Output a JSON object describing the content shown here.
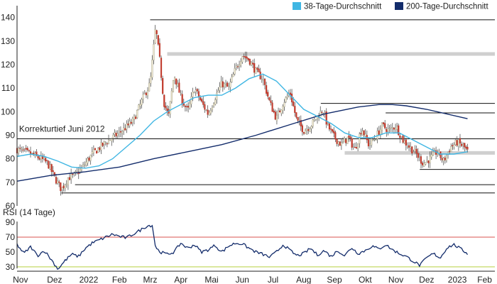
{
  "chart_data": [
    {
      "type": "candlestick",
      "legend": {
        "position": "top-right",
        "entries": [
          {
            "name": "38-Tage-Durchschnitt",
            "color": "#3fb6e3"
          },
          {
            "name": "200-Tage-Durchschnitt",
            "color": "#132c6b"
          }
        ]
      },
      "colors": {
        "up": "#f2ead2",
        "down": "#c0392b",
        "wick": "#555555",
        "ma38": "#3fb6e3",
        "ma200": "#132c6b",
        "support_line": "#111111",
        "support_zone": "#cfcfcf"
      },
      "ylim": [
        60,
        145
      ],
      "yticks": [
        60,
        70,
        80,
        90,
        100,
        110,
        120,
        130,
        140
      ],
      "xlim": [
        0,
        66
      ],
      "months": [
        {
          "label": "Nov",
          "x": 0.5
        },
        {
          "label": "Dez",
          "x": 5.5
        },
        {
          "label": "2022",
          "x": 10.5
        },
        {
          "label": "Feb",
          "x": 15
        },
        {
          "label": "Mrz",
          "x": 19.5
        },
        {
          "label": "Apr",
          "x": 24
        },
        {
          "label": "Mai",
          "x": 28.5
        },
        {
          "label": "Jun",
          "x": 33
        },
        {
          "label": "Jul",
          "x": 37.5
        },
        {
          "label": "Aug",
          "x": 42
        },
        {
          "label": "Sep",
          "x": 46.5
        },
        {
          "label": "Okt",
          "x": 51
        },
        {
          "label": "Nov",
          "x": 55.5
        },
        {
          "label": "Dez",
          "x": 60
        },
        {
          "label": "2023",
          "x": 64.5
        },
        {
          "label": "Feb",
          "x": 68.5
        }
      ],
      "annotation": {
        "text": "Korrekturtief Juni 2012",
        "x": 0.3,
        "y": 91.5
      },
      "levels": [
        {
          "y": 139,
          "x0": 19.5,
          "x1": 70
        },
        {
          "y": 103.5,
          "x0": 44.5,
          "x1": 70
        },
        {
          "y": 99.5,
          "x0": 54,
          "x1": 70
        },
        {
          "y": 88.5,
          "x0": 0,
          "x1": 70
        },
        {
          "y": 75.5,
          "x0": 59,
          "x1": 70
        },
        {
          "y": 69,
          "x0": 8.5,
          "x1": 70
        },
        {
          "y": 65.5,
          "x0": 6.5,
          "x1": 70
        }
      ],
      "zones": [
        {
          "y": 124.5,
          "x0": 22,
          "x1": 70
        },
        {
          "y": 82.5,
          "x0": 48,
          "x1": 70
        }
      ],
      "price_path": [
        [
          0,
          84
        ],
        [
          2,
          82
        ],
        [
          3.5,
          80
        ],
        [
          4.5,
          78
        ],
        [
          5.5,
          72
        ],
        [
          6.5,
          67
        ],
        [
          7.5,
          72
        ],
        [
          8.5,
          73
        ],
        [
          9.5,
          76
        ],
        [
          11,
          82
        ],
        [
          13,
          87
        ],
        [
          15,
          91
        ],
        [
          17,
          96
        ],
        [
          18.5,
          106
        ],
        [
          19.5,
          112
        ],
        [
          20.3,
          136
        ],
        [
          20.9,
          122
        ],
        [
          21.5,
          104
        ],
        [
          22.2,
          98
        ],
        [
          23,
          116
        ],
        [
          24,
          106
        ],
        [
          25,
          100
        ],
        [
          26,
          110
        ],
        [
          27,
          104
        ],
        [
          28,
          99
        ],
        [
          29,
          106
        ],
        [
          30,
          112
        ],
        [
          31,
          110
        ],
        [
          32,
          118
        ],
        [
          33,
          124
        ],
        [
          34,
          122
        ],
        [
          35,
          117
        ],
        [
          36,
          114
        ],
        [
          37,
          104
        ],
        [
          38,
          97
        ],
        [
          39,
          104
        ],
        [
          40,
          108
        ],
        [
          41,
          96
        ],
        [
          42,
          92
        ],
        [
          43,
          94
        ],
        [
          44,
          98
        ],
        [
          44.8,
          101
        ],
        [
          45.5,
          94
        ],
        [
          46.5,
          89
        ],
        [
          47.5,
          86
        ],
        [
          48.5,
          89
        ],
        [
          49.5,
          84
        ],
        [
          50.5,
          93
        ],
        [
          51.5,
          86
        ],
        [
          52.5,
          89
        ],
        [
          53.5,
          94
        ],
        [
          54.5,
          92
        ],
        [
          55.5,
          94
        ],
        [
          56.5,
          88
        ],
        [
          57.5,
          85
        ],
        [
          58.5,
          82
        ],
        [
          59.5,
          78
        ],
        [
          60.5,
          80
        ],
        [
          61.5,
          83
        ],
        [
          62.5,
          79
        ],
        [
          63.5,
          85
        ],
        [
          64.5,
          87
        ],
        [
          65.5,
          85
        ],
        [
          66,
          83
        ]
      ],
      "ma38_path": [
        [
          0,
          81
        ],
        [
          2,
          82
        ],
        [
          4,
          81
        ],
        [
          6,
          79
        ],
        [
          8,
          76.5
        ],
        [
          10,
          76
        ],
        [
          12,
          77
        ],
        [
          14,
          80
        ],
        [
          16,
          85
        ],
        [
          18,
          90
        ],
        [
          20,
          96
        ],
        [
          22,
          100
        ],
        [
          24,
          103
        ],
        [
          26,
          106
        ],
        [
          28,
          107
        ],
        [
          30,
          107
        ],
        [
          32,
          110
        ],
        [
          34,
          114
        ],
        [
          36,
          116
        ],
        [
          38,
          113
        ],
        [
          40,
          107
        ],
        [
          42,
          101
        ],
        [
          44,
          98
        ],
        [
          46,
          95
        ],
        [
          48,
          91
        ],
        [
          50,
          89
        ],
        [
          52,
          89
        ],
        [
          54,
          91
        ],
        [
          56,
          91
        ],
        [
          58,
          88
        ],
        [
          60,
          85
        ],
        [
          62,
          82
        ],
        [
          64,
          82
        ],
        [
          66,
          83
        ]
      ],
      "ma200_path": [
        [
          0,
          70.5
        ],
        [
          5,
          73
        ],
        [
          10,
          74.5
        ],
        [
          15,
          76.5
        ],
        [
          20,
          80
        ],
        [
          25,
          83
        ],
        [
          30,
          86
        ],
        [
          35,
          90
        ],
        [
          40,
          94.5
        ],
        [
          45,
          99
        ],
        [
          50,
          102
        ],
        [
          53,
          103
        ],
        [
          55,
          103
        ],
        [
          57,
          102.5
        ],
        [
          60,
          101
        ],
        [
          63,
          99
        ],
        [
          66,
          97
        ]
      ]
    },
    {
      "type": "line",
      "title": "RSI (14 Tage)",
      "ylim": [
        28,
        91
      ],
      "yticks": [
        30,
        50,
        70,
        90
      ],
      "reference_lines": [
        {
          "y": 70,
          "color": "#d9534f"
        },
        {
          "y": 30,
          "color": "#b8d040"
        }
      ],
      "series": [
        {
          "name": "RSI",
          "color": "#132c6b",
          "points": [
            [
              0,
              60
            ],
            [
              1,
              48
            ],
            [
              2,
              57
            ],
            [
              3,
              45
            ],
            [
              4,
              52
            ],
            [
              5,
              40
            ],
            [
              6,
              27
            ],
            [
              7,
              38
            ],
            [
              8,
              47
            ],
            [
              9,
              44
            ],
            [
              10,
              55
            ],
            [
              11,
              62
            ],
            [
              12,
              66
            ],
            [
              13,
              70
            ],
            [
              14,
              74
            ],
            [
              15,
              71
            ],
            [
              16,
              69
            ],
            [
              17,
              74
            ],
            [
              18,
              79
            ],
            [
              19,
              85
            ],
            [
              19.8,
              86
            ],
            [
              20.3,
              56
            ],
            [
              21,
              50
            ],
            [
              22,
              47
            ],
            [
              23,
              50
            ],
            [
              24,
              62
            ],
            [
              25,
              55
            ],
            [
              26,
              60
            ],
            [
              27,
              50
            ],
            [
              28,
              53
            ],
            [
              29,
              59
            ],
            [
              30,
              50
            ],
            [
              31,
              58
            ],
            [
              32,
              62
            ],
            [
              33,
              61
            ],
            [
              34,
              55
            ],
            [
              35,
              50
            ],
            [
              36,
              47
            ],
            [
              37,
              43
            ],
            [
              38,
              50
            ],
            [
              39,
              60
            ],
            [
              40,
              52
            ],
            [
              41,
              45
            ],
            [
              42,
              48
            ],
            [
              43,
              55
            ],
            [
              44,
              46
            ],
            [
              45,
              52
            ],
            [
              46,
              44
            ],
            [
              47,
              52
            ],
            [
              48,
              45
            ],
            [
              49,
              56
            ],
            [
              50,
              48
            ],
            [
              51,
              52
            ],
            [
              52,
              58
            ],
            [
              53,
              54
            ],
            [
              54,
              60
            ],
            [
              55,
              53
            ],
            [
              56,
              48
            ],
            [
              57,
              44
            ],
            [
              58,
              38
            ],
            [
              59,
              32
            ],
            [
              60,
              42
            ],
            [
              61,
              48
            ],
            [
              62,
              42
            ],
            [
              63,
              56
            ],
            [
              64,
              60
            ],
            [
              65,
              54
            ],
            [
              66,
              48
            ]
          ]
        }
      ]
    }
  ]
}
